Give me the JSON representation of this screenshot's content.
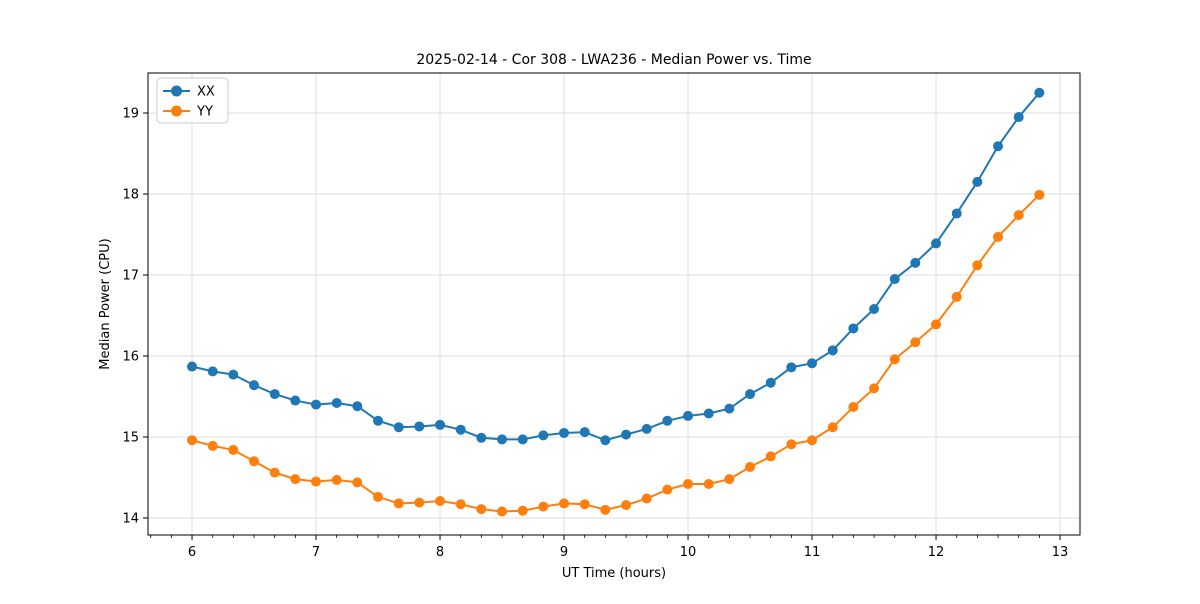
{
  "chart_data": {
    "type": "line",
    "title": "2025-02-14 - Cor 308 - LWA236 - Median Power vs. Time",
    "xlabel": "UT Time (hours)",
    "ylabel": "Median Power (CPU)",
    "xlim": [
      5.645,
      13.161
    ],
    "ylim": [
      13.79,
      19.494
    ],
    "x_ticks": [
      6,
      7,
      8,
      9,
      10,
      11,
      12,
      13
    ],
    "y_ticks": [
      14,
      15,
      16,
      17,
      18,
      19
    ],
    "x_minor_tick_step": 0.16667,
    "grid": true,
    "grid_color": "#dddddd",
    "legend": {
      "position": "upper-left",
      "entries": [
        "XX",
        "YY"
      ]
    },
    "x": [
      6.0,
      6.167,
      6.333,
      6.5,
      6.667,
      6.833,
      7.0,
      7.167,
      7.333,
      7.5,
      7.667,
      7.833,
      8.0,
      8.167,
      8.333,
      8.5,
      8.667,
      8.833,
      9.0,
      9.167,
      9.333,
      9.5,
      9.667,
      9.833,
      10.0,
      10.167,
      10.333,
      10.5,
      10.667,
      10.833,
      11.0,
      11.167,
      11.333,
      11.5,
      11.667,
      11.833,
      12.0,
      12.167,
      12.333,
      12.5,
      12.667,
      12.833
    ],
    "series": [
      {
        "name": "XX",
        "color": "#1f77b4",
        "marker": "circle",
        "values": [
          15.87,
          15.81,
          15.77,
          15.64,
          15.53,
          15.45,
          15.4,
          15.42,
          15.38,
          15.2,
          15.12,
          15.13,
          15.15,
          15.09,
          14.99,
          14.97,
          14.97,
          15.02,
          15.05,
          15.06,
          14.96,
          15.03,
          15.1,
          15.2,
          15.26,
          15.29,
          15.35,
          15.53,
          15.67,
          15.86,
          15.91,
          16.07,
          16.34,
          16.58,
          16.95,
          17.15,
          17.39,
          17.76,
          18.15,
          18.59,
          18.95,
          19.25
        ]
      },
      {
        "name": "YY",
        "color": "#ff7f0e",
        "marker": "circle",
        "values": [
          14.96,
          14.89,
          14.84,
          14.7,
          14.56,
          14.48,
          14.45,
          14.47,
          14.44,
          14.26,
          14.18,
          14.19,
          14.21,
          14.17,
          14.11,
          14.08,
          14.09,
          14.14,
          14.18,
          14.17,
          14.1,
          14.16,
          14.24,
          14.35,
          14.42,
          14.42,
          14.48,
          14.63,
          14.76,
          14.91,
          14.96,
          15.12,
          15.37,
          15.6,
          15.96,
          16.17,
          16.39,
          16.73,
          17.12,
          17.47,
          17.74,
          17.99
        ]
      }
    ]
  }
}
